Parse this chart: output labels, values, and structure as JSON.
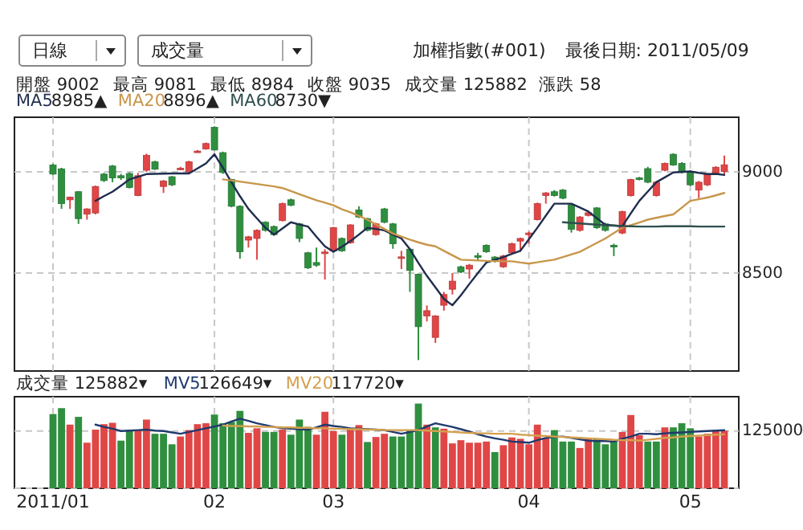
{
  "chart_data": [
    {
      "type": "candlestick",
      "title": "加權指數(#001)",
      "subtitle": "最後日期: 2011/05/09",
      "categories": [
        "2011/01",
        null,
        null,
        null,
        null,
        null,
        null,
        null,
        null,
        null,
        null,
        null,
        null,
        null,
        null,
        null,
        null,
        null,
        null,
        "02",
        null,
        null,
        null,
        null,
        null,
        null,
        null,
        null,
        null,
        null,
        null,
        null,
        null,
        "03",
        null,
        null,
        null,
        null,
        null,
        null,
        null,
        null,
        null,
        null,
        null,
        null,
        null,
        null,
        null,
        null,
        null,
        null,
        null,
        null,
        null,
        null,
        "04",
        null,
        null,
        null,
        null,
        null,
        null,
        null,
        null,
        null,
        null,
        null,
        null,
        null,
        null,
        null,
        null,
        null,
        null,
        "05",
        null,
        null,
        null,
        null
      ],
      "ohlc": [
        [
          9034,
          9040,
          8985,
          8989
        ],
        [
          9015,
          9020,
          8817,
          8843
        ],
        [
          8862,
          8878,
          8817,
          8875
        ],
        [
          8902,
          8905,
          8743,
          8769
        ],
        [
          8791,
          8820,
          8764,
          8817
        ],
        [
          8797,
          8932,
          8790,
          8928
        ],
        [
          8989,
          8995,
          8950,
          8957
        ],
        [
          9029,
          9034,
          8949,
          8970
        ],
        [
          8981,
          8990,
          8960,
          8970
        ],
        [
          8992,
          8998,
          8918,
          8923
        ],
        [
          8883,
          8995,
          8880,
          8981
        ],
        [
          9008,
          9090,
          9000,
          9082
        ],
        [
          9050,
          9055,
          9010,
          9013
        ],
        [
          8928,
          8960,
          8896,
          8955
        ],
        [
          8976,
          8980,
          8930,
          8936
        ],
        [
          9014,
          9025,
          9010,
          9018
        ],
        [
          9000,
          9055,
          8995,
          9050
        ],
        [
          9098,
          9108,
          9095,
          9103
        ],
        [
          9113,
          9145,
          9110,
          9140
        ],
        [
          9220,
          9225,
          9105,
          9108
        ],
        [
          9095,
          9100,
          8990,
          8997
        ],
        [
          8963,
          8965,
          8825,
          8830
        ],
        [
          8830,
          8835,
          8571,
          8605
        ],
        [
          8663,
          8684,
          8626,
          8679
        ],
        [
          8671,
          8716,
          8566,
          8711
        ],
        [
          8751,
          8756,
          8705,
          8711
        ],
        [
          8730,
          8735,
          8685,
          8690
        ],
        [
          8759,
          8848,
          8755,
          8843
        ],
        [
          8862,
          8868,
          8830,
          8835
        ],
        [
          8743,
          8748,
          8653,
          8671
        ],
        [
          8600,
          8605,
          8520,
          8526
        ],
        [
          8552,
          8626,
          8531,
          8539
        ],
        [
          8598,
          8618,
          8468,
          8604
        ],
        [
          8610,
          8728,
          8605,
          8724
        ],
        [
          8671,
          8676,
          8605,
          8610
        ],
        [
          8650,
          8742,
          8645,
          8738
        ],
        [
          8812,
          8830,
          8772,
          8777
        ],
        [
          8769,
          8773,
          8706,
          8711
        ],
        [
          8690,
          8748,
          8685,
          8743
        ],
        [
          8817,
          8822,
          8746,
          8751
        ],
        [
          8743,
          8748,
          8620,
          8645
        ],
        [
          8577,
          8610,
          8520,
          8580
        ],
        [
          8618,
          8622,
          8407,
          8513
        ],
        [
          8494,
          8498,
          8070,
          8235
        ],
        [
          8288,
          8340,
          8261,
          8314
        ],
        [
          8182,
          8292,
          8155,
          8288
        ],
        [
          8341,
          8407,
          8314,
          8394
        ],
        [
          8420,
          8500,
          8394,
          8460
        ],
        [
          8531,
          8536,
          8500,
          8505
        ],
        [
          8520,
          8545,
          8473,
          8539
        ],
        [
          8586,
          8600,
          8560,
          8582
        ],
        [
          8637,
          8642,
          8600,
          8605
        ],
        [
          8579,
          8584,
          8552,
          8558
        ],
        [
          8531,
          8590,
          8526,
          8584
        ],
        [
          8600,
          8650,
          8595,
          8645
        ],
        [
          8658,
          8675,
          8605,
          8671
        ],
        [
          8690,
          8705,
          8645,
          8698
        ],
        [
          8764,
          8848,
          8760,
          8843
        ],
        [
          8883,
          8900,
          8843,
          8896
        ],
        [
          8902,
          8910,
          8878,
          8883
        ],
        [
          8910,
          8915,
          8865,
          8870
        ],
        [
          8838,
          8842,
          8700,
          8716
        ],
        [
          8711,
          8782,
          8705,
          8777
        ],
        [
          8785,
          8802,
          8780,
          8798
        ],
        [
          8822,
          8826,
          8718,
          8724
        ],
        [
          8743,
          8748,
          8705,
          8711
        ],
        [
          8637,
          8645,
          8584,
          8634
        ],
        [
          8698,
          8808,
          8692,
          8804
        ],
        [
          8883,
          8966,
          8878,
          8962
        ],
        [
          8970,
          8975,
          8958,
          8962
        ],
        [
          9016,
          9025,
          8944,
          8949
        ],
        [
          8883,
          8955,
          8878,
          8949
        ],
        [
          9008,
          9046,
          9003,
          9042
        ],
        [
          9087,
          9092,
          9030,
          9034
        ],
        [
          9042,
          9048,
          8992,
          8997
        ],
        [
          9002,
          9008,
          8930,
          8936
        ],
        [
          8910,
          8955,
          8870,
          8949
        ],
        [
          8936,
          8994,
          8930,
          8989
        ],
        [
          8989,
          9028,
          8984,
          9023
        ],
        [
          9002,
          9081,
          8984,
          9035
        ]
      ],
      "colors": [
        "#2f8f3f",
        "#2f8f3f",
        "#e04646",
        "#2f8f3f",
        "#e04646",
        "#e04646",
        "#2f8f3f",
        "#2f8f3f",
        "#2f8f3f",
        "#2f8f3f",
        "#e04646",
        "#e04646",
        "#2f8f3f",
        "#e04646",
        "#2f8f3f",
        "#e04646",
        "#e04646",
        "#e04646",
        "#e04646",
        "#2f8f3f",
        "#2f8f3f",
        "#2f8f3f",
        "#2f8f3f",
        "#e04646",
        "#e04646",
        "#2f8f3f",
        "#2f8f3f",
        "#e04646",
        "#2f8f3f",
        "#2f8f3f",
        "#2f8f3f",
        "#2f8f3f",
        "#e04646",
        "#e04646",
        "#2f8f3f",
        "#e04646",
        "#2f8f3f",
        "#2f8f3f",
        "#e04646",
        "#2f8f3f",
        "#2f8f3f",
        "#e04646",
        "#2f8f3f",
        "#2f8f3f",
        "#e04646",
        "#e04646",
        "#e04646",
        "#e04646",
        "#2f8f3f",
        "#e04646",
        "#2f8f3f",
        "#2f8f3f",
        "#2f8f3f",
        "#e04646",
        "#e04646",
        "#e04646",
        "#e04646",
        "#e04646",
        "#e04646",
        "#2f8f3f",
        "#2f8f3f",
        "#2f8f3f",
        "#e04646",
        "#e04646",
        "#2f8f3f",
        "#2f8f3f",
        "#2f8f3f",
        "#e04646",
        "#e04646",
        "#2f8f3f",
        "#2f8f3f",
        "#e04646",
        "#e04646",
        "#2f8f3f",
        "#2f8f3f",
        "#2f8f3f",
        "#e04646",
        "#e04646",
        "#e04646",
        "#e04646"
      ],
      "series": [
        {
          "type": "line",
          "name": "MA5",
          "color": "#1f2d4f",
          "values": [
            null,
            null,
            null,
            null,
            null,
            8857,
            8880,
            8902,
            8932,
            8963,
            8976,
            8989,
            8990,
            8991,
            8992,
            8992,
            8992,
            9017,
            9042,
            9087,
            9020,
            8949,
            8880,
            8817,
            8770,
            8724,
            8690,
            8720,
            8751,
            8740,
            8730,
            8680,
            8632,
            8605,
            8630,
            8658,
            8690,
            8724,
            8718,
            8711,
            8690,
            8671,
            8618,
            8550,
            8486,
            8430,
            8372,
            8341,
            8390,
            8446,
            8500,
            8552,
            8565,
            8579,
            8595,
            8610,
            8667,
            8724,
            8784,
            8843,
            8843,
            8843,
            8824,
            8804,
            8771,
            8738,
            8735,
            8732,
            8795,
            8857,
            8903,
            8949,
            8973,
            8997,
            9000,
            9002,
            8995,
            8989,
            8990,
            8985
          ]
        },
        {
          "type": "line",
          "name": "MA20",
          "color": "#c8964a",
          "values": [
            null,
            null,
            null,
            null,
            null,
            null,
            null,
            null,
            null,
            null,
            null,
            null,
            null,
            null,
            null,
            null,
            null,
            null,
            null,
            null,
            8963,
            8958,
            8952,
            8946,
            8940,
            8934,
            8928,
            8920,
            8905,
            8890,
            8875,
            8860,
            8848,
            8835,
            8815,
            8800,
            8782,
            8764,
            8740,
            8718,
            8695,
            8680,
            8665,
            8652,
            8640,
            8632,
            8610,
            8588,
            8566,
            8564,
            8562,
            8560,
            8559,
            8558,
            8558,
            8552,
            8547,
            8553,
            8560,
            8566,
            8579,
            8592,
            8605,
            8627,
            8649,
            8671,
            8698,
            8724,
            8737,
            8750,
            8764,
            8773,
            8782,
            8790,
            8823,
            8857,
            8865,
            8873,
            8884,
            8896
          ]
        },
        {
          "type": "line",
          "name": "MA60",
          "color": "#2f4f4f",
          "values": [
            null,
            null,
            null,
            null,
            null,
            null,
            null,
            null,
            null,
            null,
            null,
            null,
            null,
            null,
            null,
            null,
            null,
            null,
            null,
            null,
            null,
            null,
            null,
            null,
            null,
            null,
            null,
            null,
            null,
            null,
            null,
            null,
            null,
            null,
            null,
            null,
            null,
            null,
            null,
            null,
            null,
            null,
            null,
            null,
            null,
            null,
            null,
            null,
            null,
            null,
            null,
            null,
            null,
            null,
            null,
            null,
            null,
            null,
            null,
            null,
            8751,
            8748,
            8745,
            8742,
            8739,
            8736,
            8734,
            8732,
            8731,
            8730,
            8730,
            8730,
            8731,
            8731,
            8731,
            8731,
            8730,
            8730,
            8730,
            8730
          ]
        }
      ],
      "ylim": [
        8016,
        9270
      ],
      "yticks": [
        8500,
        9000
      ],
      "grid": true,
      "tick_labels": "y",
      "legend": "top left",
      "annotations": [
        "日線",
        "成交量",
        "開盤 9002",
        "最高 9081",
        "最低 8984",
        "收盤 9035",
        "成交量 125882",
        "漲跌 58",
        "8985▲",
        "8896▲",
        "8730▼"
      ]
    },
    {
      "type": "bar",
      "categories": [
        "2011/01",
        null,
        null,
        null,
        null,
        null,
        null,
        null,
        null,
        null,
        null,
        null,
        null,
        null,
        null,
        null,
        null,
        null,
        null,
        "02",
        null,
        null,
        null,
        null,
        null,
        null,
        null,
        null,
        null,
        null,
        null,
        null,
        null,
        "03",
        null,
        null,
        null,
        null,
        null,
        null,
        null,
        null,
        null,
        null,
        null,
        null,
        null,
        null,
        null,
        null,
        null,
        null,
        null,
        null,
        null,
        null,
        "04",
        null,
        null,
        null,
        null,
        null,
        null,
        null,
        null,
        null,
        null,
        null,
        null,
        null,
        null,
        null,
        null,
        null,
        null,
        "05",
        null,
        null,
        null,
        null
      ],
      "series": [
        {
          "type": "bar",
          "values": [
            162000,
            175000,
            139000,
            156000,
            99500,
            128000,
            140000,
            143000,
            104000,
            127000,
            127000,
            150000,
            119000,
            119000,
            96000,
            113000,
            127000,
            140000,
            142000,
            161000,
            142000,
            145000,
            169000,
            121000,
            131000,
            123000,
            123000,
            128000,
            117000,
            150000,
            134000,
            117000,
            167000,
            125000,
            117000,
            132000,
            138000,
            101000,
            112000,
            119000,
            113000,
            113000,
            128000,
            185000,
            139000,
            133000,
            130000,
            98000,
            105000,
            99500,
            99500,
            102000,
            79000,
            94000,
            111000,
            108000,
            96000,
            139000,
            110000,
            127000,
            102000,
            102000,
            88000,
            108000,
            108000,
            96000,
            102000,
            123000,
            160000,
            116000,
            102000,
            102000,
            133000,
            133000,
            142000,
            131000,
            113000,
            119000,
            125000,
            125882
          ],
          "colors": [
            "#2f8f3f",
            "#2f8f3f",
            "#e04646",
            "#2f8f3f",
            "#e04646",
            "#e04646",
            "#e04646",
            "#e04646",
            "#2f8f3f",
            "#2f8f3f",
            "#e04646",
            "#e04646",
            "#2f8f3f",
            "#2f8f3f",
            "#2f8f3f",
            "#e04646",
            "#e04646",
            "#e04646",
            "#e04646",
            "#2f8f3f",
            "#2f8f3f",
            "#2f8f3f",
            "#2f8f3f",
            "#e04646",
            "#e04646",
            "#2f8f3f",
            "#2f8f3f",
            "#e04646",
            "#2f8f3f",
            "#2f8f3f",
            "#2f8f3f",
            "#e04646",
            "#e04646",
            "#e04646",
            "#2f8f3f",
            "#e04646",
            "#e04646",
            "#2f8f3f",
            "#e04646",
            "#e04646",
            "#2f8f3f",
            "#2f8f3f",
            "#2f8f3f",
            "#2f8f3f",
            "#e04646",
            "#2f8f3f",
            "#e04646",
            "#e04646",
            "#e04646",
            "#e04646",
            "#e04646",
            "#e04646",
            "#2f8f3f",
            "#e04646",
            "#e04646",
            "#e04646",
            "#e04646",
            "#e04646",
            "#e04646",
            "#2f8f3f",
            "#2f8f3f",
            "#2f8f3f",
            "#e04646",
            "#e04646",
            "#2f8f3f",
            "#2f8f3f",
            "#2f8f3f",
            "#e04646",
            "#e04646",
            "#e04646",
            "#2f8f3f",
            "#2f8f3f",
            "#e04646",
            "#2f8f3f",
            "#2f8f3f",
            "#2f8f3f",
            "#e04646",
            "#e04646",
            "#e04646",
            "#e04646"
          ]
        },
        {
          "type": "line",
          "name": "MV5",
          "color": "#1f3a6e",
          "values": [
            null,
            null,
            null,
            null,
            null,
            139000,
            134000,
            130000,
            125000,
            126000,
            127000,
            128000,
            126000,
            125000,
            122000,
            119000,
            123000,
            127000,
            131000,
            135000,
            139000,
            146000,
            152000,
            147000,
            142000,
            138000,
            134000,
            131000,
            130000,
            129000,
            128000,
            133000,
            139000,
            136000,
            134000,
            131000,
            130000,
            129000,
            128000,
            127000,
            123000,
            119000,
            123000,
            127000,
            135000,
            142000,
            138000,
            134000,
            129000,
            124000,
            118000,
            113000,
            109000,
            106000,
            102000,
            101000,
            99500,
            105000,
            110000,
            112000,
            113000,
            110000,
            107000,
            104000,
            103000,
            103000,
            102000,
            108000,
            113000,
            119000,
            119000,
            118000,
            120000,
            121000,
            122000,
            123000,
            124000,
            125000,
            126000,
            126649
          ]
        },
        {
          "type": "line",
          "name": "MV20",
          "color": "#d4a050",
          "values": [
            null,
            null,
            null,
            null,
            null,
            null,
            null,
            null,
            null,
            null,
            null,
            null,
            null,
            null,
            null,
            null,
            null,
            null,
            null,
            null,
            137000,
            136000,
            136000,
            135000,
            135000,
            134000,
            134000,
            133000,
            133000,
            132000,
            132000,
            131000,
            131000,
            130000,
            130000,
            129000,
            129000,
            128000,
            128000,
            127000,
            127000,
            127000,
            127000,
            127000,
            126000,
            125000,
            124000,
            123000,
            122000,
            121000,
            120000,
            120000,
            119000,
            119000,
            119000,
            117000,
            116000,
            115000,
            114000,
            113000,
            112000,
            111000,
            110000,
            109000,
            108000,
            107000,
            106000,
            105000,
            105000,
            104000,
            106000,
            108000,
            110000,
            111000,
            113000,
            114000,
            115000,
            116000,
            117000,
            117720
          ]
        }
      ],
      "ylim": [
        0,
        200000
      ],
      "yticks": [
        {
          "value": 0,
          "label": null
        },
        125000
      ],
      "grid": true,
      "legend": "top left",
      "annotations": [
        "成交量 125882▾",
        "126649▾",
        "117720▾"
      ]
    }
  ]
}
